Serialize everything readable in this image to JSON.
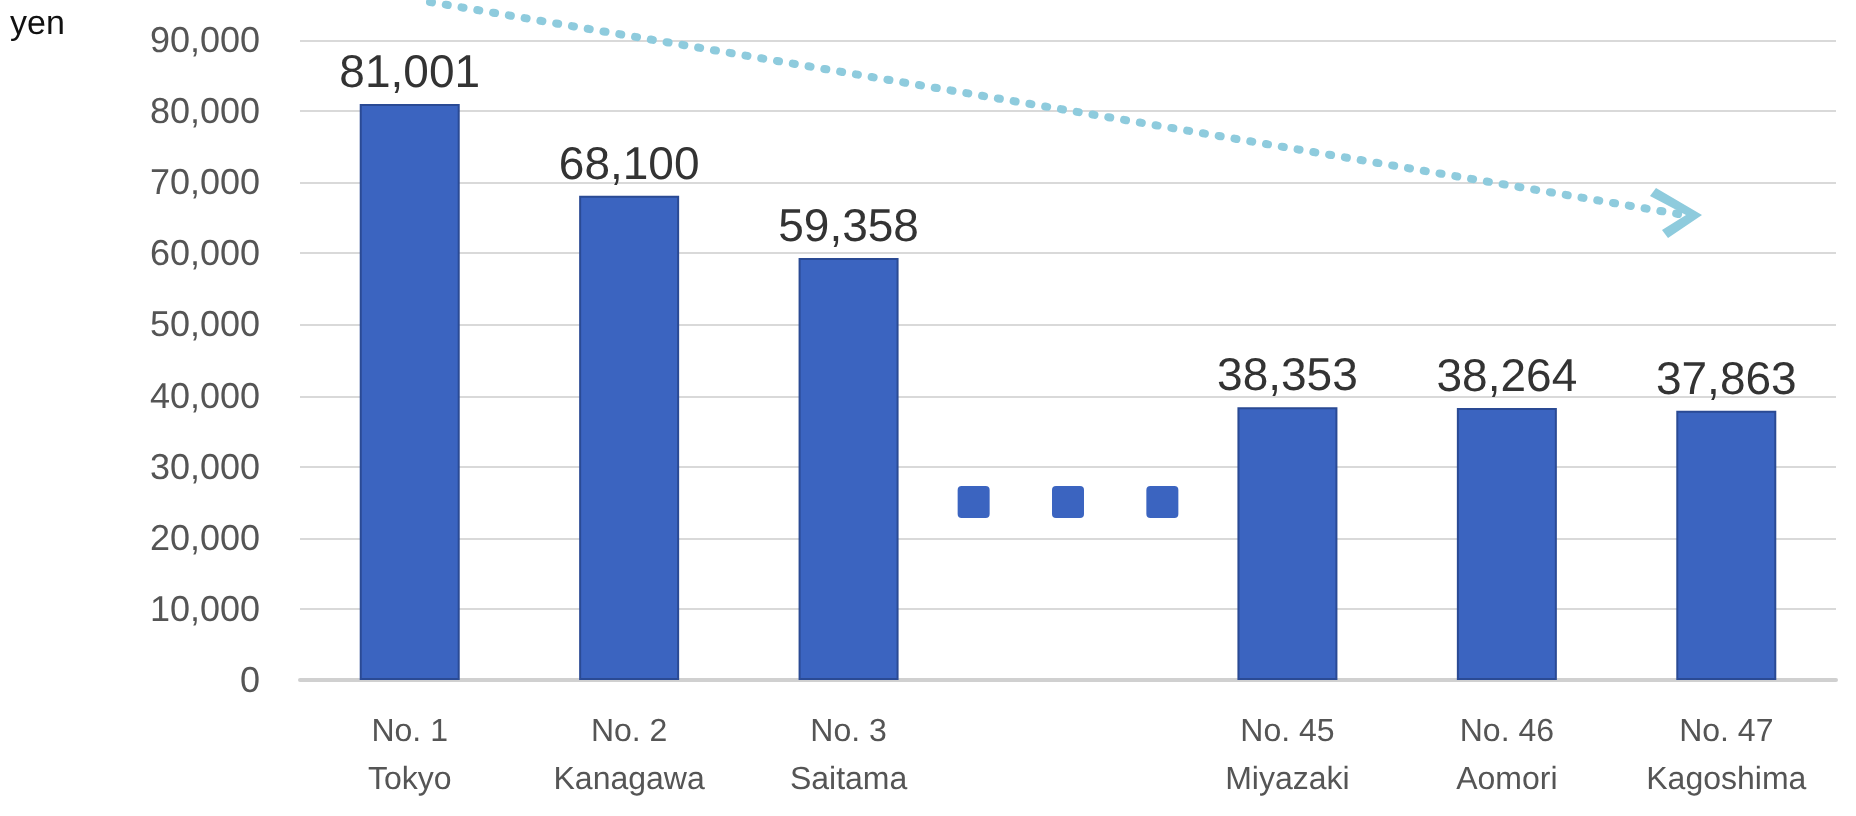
{
  "chart_data": {
    "type": "bar",
    "ylabel": "yen",
    "categories": [
      "No. 1\nTokyo",
      "No. 2\nKanagawa",
      "No. 3\nSaitama",
      null,
      "No. 45\nMiyazaki",
      "No. 46\nAomori",
      "No. 47\nKagoshima"
    ],
    "values": [
      81001,
      68100,
      59358,
      null,
      38353,
      38264,
      37863
    ],
    "value_labels": [
      "81,001",
      "68,100",
      "59,358",
      null,
      "38,353",
      "38,264",
      "37,863"
    ],
    "color": "#3b64c0",
    "grid": "y",
    "ylim": [
      0,
      90000
    ],
    "yticks": [
      0,
      {
        "value": 10000,
        "label": "10,000"
      },
      {
        "value": 20000,
        "label": "20,000"
      },
      {
        "value": 30000,
        "label": "30,000"
      },
      {
        "value": 40000,
        "label": "40,000"
      },
      {
        "value": 50000,
        "label": "50,000"
      },
      {
        "value": 60000,
        "label": "60,000"
      },
      {
        "value": 70000,
        "label": "70,000"
      },
      {
        "value": 80000,
        "label": "80,000"
      },
      {
        "value": 90000,
        "label": "90,000"
      }
    ]
  }
}
